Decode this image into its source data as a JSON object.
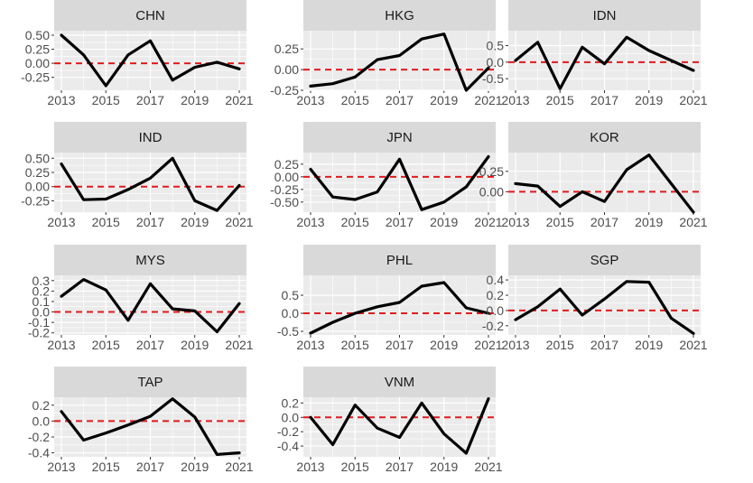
{
  "chart_data": {
    "type": "line",
    "layout": "facet_wrap",
    "x": [
      2013,
      2014,
      2015,
      2016,
      2017,
      2018,
      2019,
      2020,
      2021
    ],
    "x_ticks": [
      2013,
      2015,
      2017,
      2019,
      2021
    ],
    "reference_line": {
      "y": 0,
      "style": "dashed",
      "color": "#e41a1c"
    },
    "colors": {
      "line": "#000000",
      "panel": "#ebebeb",
      "strip": "#d9d9d9",
      "grid": "#ffffff",
      "reference": "#e41a1c"
    },
    "panels": [
      {
        "name": "CHN",
        "ylim": [
          -0.48,
          0.58
        ],
        "y_ticks": [
          -0.25,
          0,
          0.25,
          0.5
        ],
        "y_tick_labels": [
          "-0.25",
          "0.00",
          "0.25",
          "0.50"
        ],
        "values": [
          0.5,
          0.15,
          -0.4,
          0.15,
          0.4,
          -0.3,
          -0.07,
          0.02,
          -0.1
        ]
      },
      {
        "name": "HKG",
        "ylim": [
          -0.25,
          0.47
        ],
        "y_ticks": [
          -0.25,
          0,
          0.25
        ],
        "y_tick_labels": [
          "-0.25",
          "0.00",
          "0.25"
        ],
        "values": [
          -0.2,
          -0.17,
          -0.09,
          0.12,
          0.17,
          0.37,
          0.43,
          -0.25,
          0.02
        ]
      },
      {
        "name": "IDN",
        "ylim": [
          -0.85,
          0.95
        ],
        "y_ticks": [
          -0.5,
          0,
          0.5
        ],
        "y_tick_labels": [
          "-0.5",
          "0.0",
          "0.5"
        ],
        "values": [
          0.05,
          0.6,
          -0.8,
          0.45,
          -0.05,
          0.75,
          0.35,
          0.05,
          -0.25
        ]
      },
      {
        "name": "IND",
        "ylim": [
          -0.45,
          0.6
        ],
        "y_ticks": [
          -0.25,
          0,
          0.25,
          0.5
        ],
        "y_tick_labels": [
          "-0.25",
          "0.00",
          "0.25",
          "0.50"
        ],
        "values": [
          0.4,
          -0.23,
          -0.22,
          -0.05,
          0.15,
          0.5,
          -0.25,
          -0.42,
          0.02
        ]
      },
      {
        "name": "JPN",
        "ylim": [
          -0.7,
          0.48
        ],
        "y_ticks": [
          -0.5,
          -0.25,
          0,
          0.25
        ],
        "y_tick_labels": [
          "-0.50",
          "-0.25",
          "0.00",
          "0.25"
        ],
        "values": [
          0.15,
          -0.4,
          -0.45,
          -0.3,
          0.35,
          -0.65,
          -0.5,
          -0.2,
          0.4
        ]
      },
      {
        "name": "KOR",
        "ylim": [
          -0.25,
          0.48
        ],
        "y_ticks": [
          0,
          0.25
        ],
        "y_tick_labels": [
          "0.00",
          "0.25"
        ],
        "values": [
          0.1,
          0.07,
          -0.18,
          0.0,
          -0.12,
          0.27,
          0.45,
          0.1,
          -0.25
        ]
      },
      {
        "name": "MYS",
        "ylim": [
          -0.22,
          0.35
        ],
        "y_ticks": [
          -0.2,
          -0.1,
          0,
          0.1,
          0.2,
          0.3
        ],
        "y_tick_labels": [
          "-0.2",
          "-0.1",
          "0.0",
          "0.1",
          "0.2",
          "0.3"
        ],
        "values": [
          0.15,
          0.31,
          0.21,
          -0.08,
          0.27,
          0.03,
          0.01,
          -0.19,
          0.08
        ]
      },
      {
        "name": "PHL",
        "ylim": [
          -0.6,
          1.05
        ],
        "y_ticks": [
          -0.5,
          0,
          0.5
        ],
        "y_tick_labels": [
          "-0.5",
          "0.0",
          "0.5"
        ],
        "values": [
          -0.55,
          -0.25,
          0.0,
          0.18,
          0.3,
          0.75,
          0.85,
          0.15,
          0.0
        ]
      },
      {
        "name": "SGP",
        "ylim": [
          -0.32,
          0.46
        ],
        "y_ticks": [
          -0.2,
          0,
          0.2,
          0.4
        ],
        "y_tick_labels": [
          "-0.2",
          "0.0",
          "0.2",
          "0.4"
        ],
        "values": [
          -0.12,
          0.05,
          0.28,
          -0.06,
          0.15,
          0.38,
          0.37,
          -0.1,
          -0.3
        ]
      },
      {
        "name": "TAP",
        "ylim": [
          -0.45,
          0.3
        ],
        "y_ticks": [
          -0.4,
          -0.2,
          0,
          0.2
        ],
        "y_tick_labels": [
          "-0.4",
          "-0.2",
          "0.0",
          "0.2"
        ],
        "values": [
          0.12,
          -0.24,
          -0.15,
          -0.05,
          0.06,
          0.28,
          0.05,
          -0.42,
          -0.4
        ]
      },
      {
        "name": "VNM",
        "ylim": [
          -0.55,
          0.28
        ],
        "y_ticks": [
          -0.4,
          -0.2,
          0,
          0.2
        ],
        "y_tick_labels": [
          "-0.4",
          "-0.2",
          "0.0",
          "0.2"
        ],
        "values": [
          0.0,
          -0.38,
          0.17,
          -0.15,
          -0.28,
          0.2,
          -0.23,
          -0.5,
          0.26
        ]
      }
    ]
  }
}
